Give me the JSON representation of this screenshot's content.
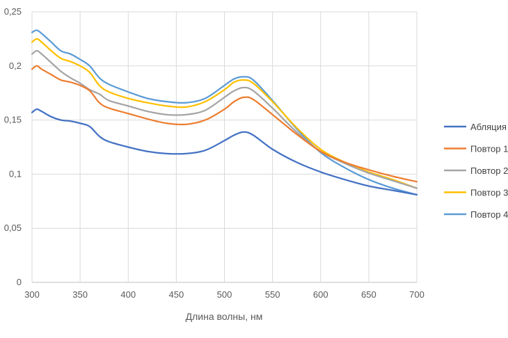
{
  "chart_data": {
    "type": "line",
    "title": "",
    "xlabel": "Длина волны, нм",
    "ylabel": "",
    "xlim": [
      300,
      700
    ],
    "ylim": [
      0,
      0.25
    ],
    "x_ticks": [
      "300",
      "350",
      "400",
      "450",
      "500",
      "550",
      "600",
      "650",
      "700"
    ],
    "y_ticks": [
      "0",
      "0,05",
      "0,1",
      "0,15",
      "0,2",
      "0,25"
    ],
    "grid": true,
    "legend_position": "right",
    "x": [
      300,
      305,
      310,
      320,
      330,
      340,
      350,
      360,
      370,
      380,
      400,
      420,
      440,
      460,
      480,
      500,
      510,
      520,
      530,
      550,
      575,
      600,
      625,
      650,
      675,
      700
    ],
    "series": [
      {
        "name": "Абляция",
        "color": "#4472C4",
        "values": [
          0.157,
          0.16,
          0.158,
          0.153,
          0.15,
          0.149,
          0.147,
          0.144,
          0.135,
          0.13,
          0.125,
          0.121,
          0.119,
          0.119,
          0.122,
          0.131,
          0.136,
          0.139,
          0.136,
          0.123,
          0.111,
          0.102,
          0.095,
          0.089,
          0.085,
          0.081
        ]
      },
      {
        "name": "Повтор 1",
        "color": "#ED7D31",
        "values": [
          0.197,
          0.2,
          0.197,
          0.192,
          0.187,
          0.185,
          0.182,
          0.177,
          0.166,
          0.161,
          0.156,
          0.151,
          0.147,
          0.146,
          0.15,
          0.16,
          0.167,
          0.171,
          0.169,
          0.155,
          0.137,
          0.121,
          0.111,
          0.104,
          0.098,
          0.093
        ]
      },
      {
        "name": "Повтор 2",
        "color": "#A5A5A5",
        "values": [
          0.211,
          0.214,
          0.211,
          0.203,
          0.195,
          0.189,
          0.184,
          0.178,
          0.174,
          0.168,
          0.163,
          0.158,
          0.155,
          0.155,
          0.159,
          0.171,
          0.177,
          0.18,
          0.177,
          0.161,
          0.139,
          0.121,
          0.11,
          0.101,
          0.094,
          0.087
        ]
      },
      {
        "name": "Повтор 3",
        "color": "#FFC000",
        "values": [
          0.222,
          0.225,
          0.222,
          0.214,
          0.207,
          0.204,
          0.2,
          0.194,
          0.182,
          0.176,
          0.17,
          0.166,
          0.163,
          0.162,
          0.167,
          0.178,
          0.185,
          0.187,
          0.184,
          0.167,
          0.143,
          0.123,
          0.111,
          0.102,
          0.095,
          0.087
        ]
      },
      {
        "name": "Повтор 4",
        "color": "#5B9BD5",
        "values": [
          0.231,
          0.233,
          0.23,
          0.222,
          0.214,
          0.211,
          0.206,
          0.2,
          0.189,
          0.183,
          0.176,
          0.17,
          0.167,
          0.166,
          0.17,
          0.182,
          0.188,
          0.19,
          0.187,
          0.168,
          0.142,
          0.12,
          0.106,
          0.095,
          0.087,
          0.081
        ]
      }
    ]
  }
}
